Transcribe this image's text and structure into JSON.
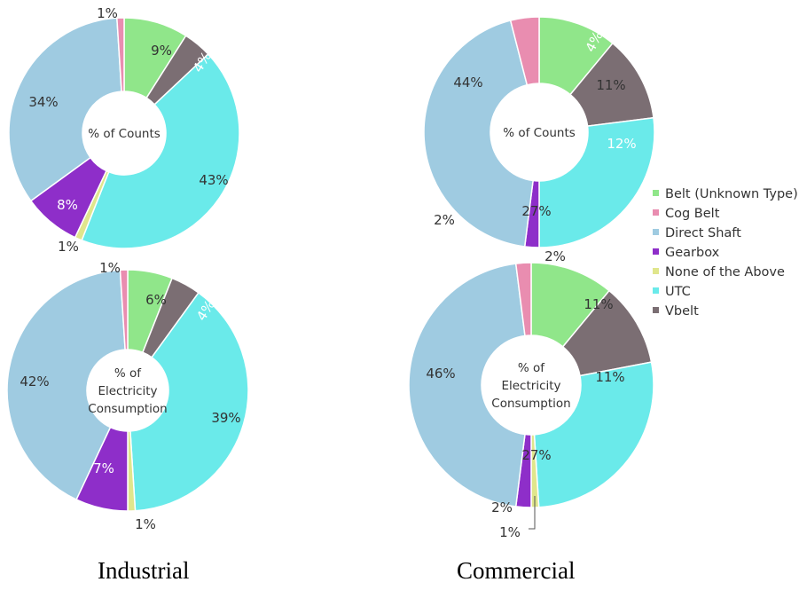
{
  "colors": {
    "Belt (Unknown Type)": "#90e68a",
    "Cog Belt": "#e98db0",
    "Direct Shaft": "#9fcbe1",
    "Gearbox": "#8e2ec9",
    "None of the Above": "#e0e68c",
    "UTC": "#6aeaea",
    "Vbelt": "#7b6e73"
  },
  "chart_data": [
    {
      "type": "pie",
      "group": "Industrial",
      "center_label": "% of Counts",
      "series": [
        {
          "name": "Belt (Unknown Type)",
          "value": 9,
          "label": "9%"
        },
        {
          "name": "Vbelt",
          "value": 4,
          "label": "4%"
        },
        {
          "name": "UTC",
          "value": 43,
          "label": "43%"
        },
        {
          "name": "None of the Above",
          "value": 1,
          "label": "1%"
        },
        {
          "name": "Gearbox",
          "value": 8,
          "label": "8%"
        },
        {
          "name": "Direct Shaft",
          "value": 34,
          "label": "34%"
        },
        {
          "name": "Cog Belt",
          "value": 1,
          "label": "1%"
        }
      ]
    },
    {
      "type": "pie",
      "group": "Commercial",
      "center_label": "% of Counts",
      "series": [
        {
          "name": "Belt (Unknown Type)",
          "value": 11,
          "label": "11%"
        },
        {
          "name": "Vbelt",
          "value": 12,
          "label": "12%"
        },
        {
          "name": "UTC",
          "value": 27,
          "label": "27%"
        },
        {
          "name": "Gearbox",
          "value": 2,
          "label": "2%"
        },
        {
          "name": "Direct Shaft",
          "value": 44,
          "label": "44%"
        },
        {
          "name": "Cog Belt",
          "value": 4,
          "label": "4%"
        }
      ]
    },
    {
      "type": "pie",
      "group": "Industrial",
      "center_label": "% of Electricity Consumption",
      "series": [
        {
          "name": "Belt (Unknown Type)",
          "value": 6,
          "label": "6%"
        },
        {
          "name": "Vbelt",
          "value": 4,
          "label": "4%"
        },
        {
          "name": "UTC",
          "value": 39,
          "label": "39%"
        },
        {
          "name": "None of the Above",
          "value": 1,
          "label": "1%"
        },
        {
          "name": "Gearbox",
          "value": 7,
          "label": "7%"
        },
        {
          "name": "Direct Shaft",
          "value": 42,
          "label": "42%"
        },
        {
          "name": "Cog Belt",
          "value": 1,
          "label": "1%"
        }
      ]
    },
    {
      "type": "pie",
      "group": "Commercial",
      "center_label": "% of Electricity Consumption",
      "series": [
        {
          "name": "Belt (Unknown Type)",
          "value": 11,
          "label": "11%"
        },
        {
          "name": "Vbelt",
          "value": 11,
          "label": "11%"
        },
        {
          "name": "UTC",
          "value": 27,
          "label": "27%"
        },
        {
          "name": "None of the Above",
          "value": 1,
          "label": "1%"
        },
        {
          "name": "Gearbox",
          "value": 2,
          "label": "2%"
        },
        {
          "name": "Direct Shaft",
          "value": 46,
          "label": "46%"
        },
        {
          "name": "Cog Belt",
          "value": 2,
          "label": "2%"
        }
      ]
    }
  ],
  "legend": {
    "position": "right",
    "items": [
      "Belt (Unknown Type)",
      "Cog Belt",
      "Direct Shaft",
      "Gearbox",
      "None of the Above",
      "UTC",
      "Vbelt"
    ]
  },
  "group_titles": {
    "industrial": "Industrial",
    "commercial": "Commercial"
  }
}
